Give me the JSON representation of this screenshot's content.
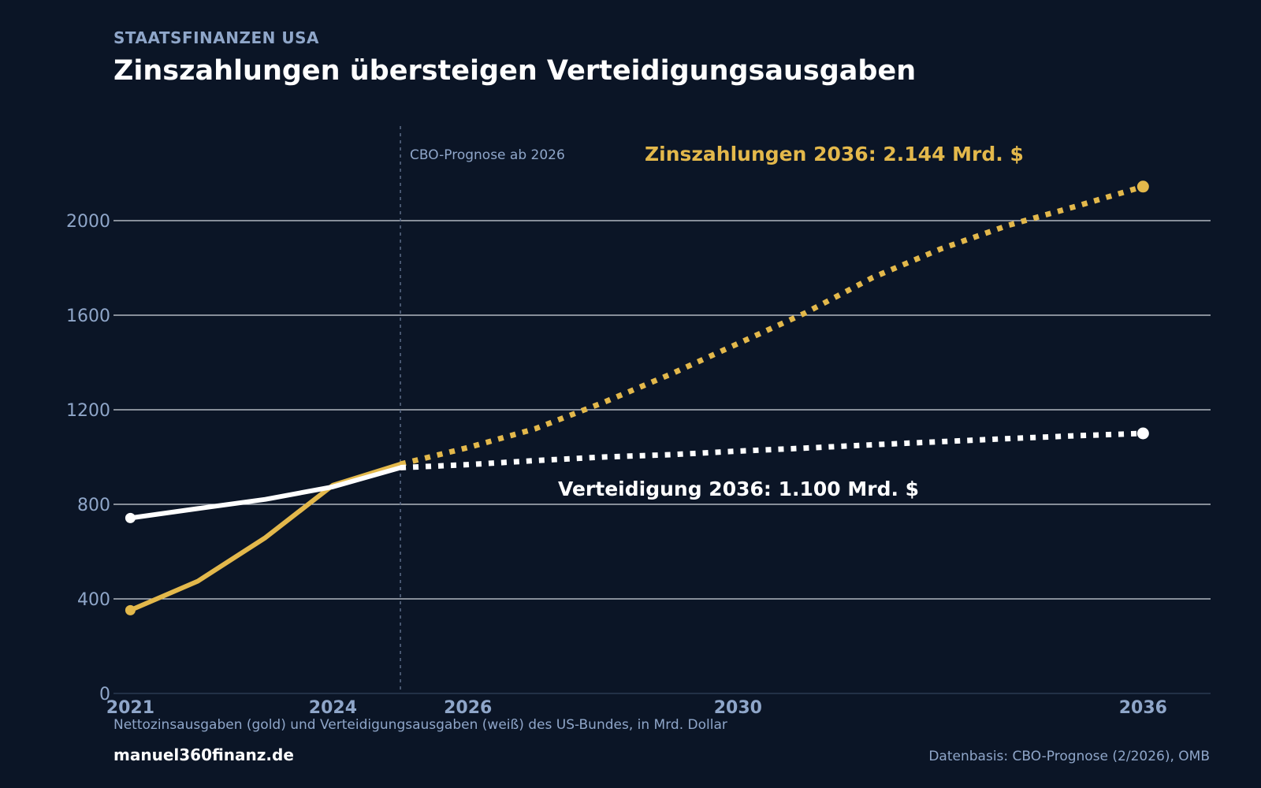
{
  "header": {
    "kicker": "STAATSFINANZEN USA",
    "title": "Zinszahlungen übersteigen Verteidigungsausgaben"
  },
  "footer": {
    "caption": "Nettozinsausgaben (gold) und Verteidigungsausgaben (weiß) des US-Bundes, in Mrd. Dollar",
    "brand": "manuel360finanz.de",
    "source": "Datenbasis: CBO-Prognose (2/2026), OMB"
  },
  "colors": {
    "background": "#0b1526",
    "interest": "#e3b84b",
    "defense": "#ffffff",
    "muted": "#8fa6c9",
    "grid": "#e8ecf3"
  },
  "chart_data": {
    "type": "line",
    "xlim": [
      2020.75,
      2037
    ],
    "ylim": [
      0,
      2400
    ],
    "x_ticks": [
      2021,
      2024,
      2026,
      2030,
      2036
    ],
    "y_ticks": [
      0,
      400,
      800,
      1200,
      1600,
      2000
    ],
    "grid": true,
    "forecast_marker": {
      "x": 2025,
      "label": "CBO-Prognose ab 2026"
    },
    "series": [
      {
        "key": "interest",
        "color": "#e3b84b",
        "actual": {
          "x": [
            2021,
            2022,
            2023,
            2024,
            2025
          ],
          "y": [
            352,
            475,
            659,
            881,
            970
          ]
        },
        "forecast": {
          "x": [
            2025,
            2026,
            2027,
            2028,
            2029,
            2030,
            2031,
            2032,
            2033,
            2034,
            2035,
            2036
          ],
          "y": [
            970,
            1040,
            1120,
            1230,
            1350,
            1480,
            1610,
            1760,
            1880,
            1980,
            2060,
            2144
          ]
        },
        "annotation": "Zinszahlungen 2036: 2.144 Mrd. $"
      },
      {
        "key": "defense",
        "color": "#ffffff",
        "actual": {
          "x": [
            2021,
            2022,
            2023,
            2024,
            2025
          ],
          "y": [
            742,
            782,
            821,
            874,
            955
          ]
        },
        "forecast": {
          "x": [
            2025,
            2026,
            2027,
            2028,
            2029,
            2030,
            2031,
            2032,
            2033,
            2034,
            2035,
            2036
          ],
          "y": [
            955,
            968,
            985,
            1000,
            1010,
            1025,
            1038,
            1052,
            1065,
            1078,
            1090,
            1100
          ]
        },
        "annotation": "Verteidigung 2036: 1.100 Mrd. $"
      }
    ]
  }
}
